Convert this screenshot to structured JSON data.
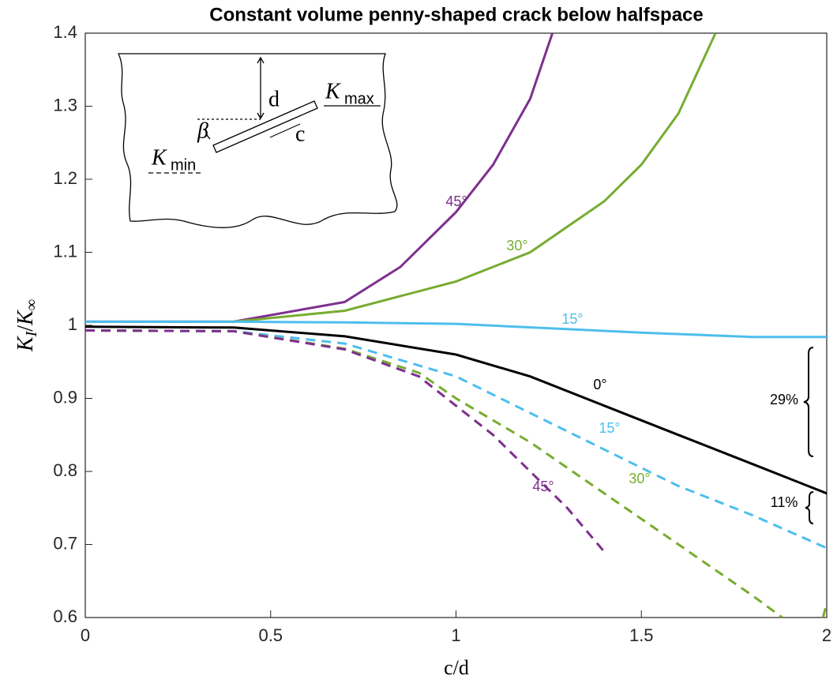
{
  "chart_data": {
    "type": "line",
    "title": "Constant volume penny-shaped crack below halfspace",
    "x_label": "c/d",
    "y_label": [
      {
        "text": "K"
      },
      {
        "text": "I",
        "sub": true
      },
      {
        "text": "/"
      },
      {
        "text": "K"
      },
      {
        "text": "∞",
        "sub": true
      }
    ],
    "xlim": [
      0,
      2
    ],
    "xticks": [
      0,
      0.5,
      1,
      1.5,
      2
    ],
    "ylim": [
      0.6,
      1.4
    ],
    "yticks": [
      0.6,
      0.7,
      0.8,
      0.9,
      1,
      1.1,
      1.2,
      1.3,
      1.4
    ],
    "grid": false,
    "series": [
      {
        "color": "#7E2F8E",
        "style": "solid",
        "x": [
          0,
          0.4,
          0.7,
          0.85,
          1.0,
          1.1,
          1.2,
          1.26
        ],
        "values": [
          1.005,
          1.005,
          1.032,
          1.08,
          1.155,
          1.22,
          1.31,
          1.4
        ]
      },
      {
        "color": "#77AC30",
        "style": "solid",
        "x": [
          0,
          0.4,
          0.7,
          1.0,
          1.2,
          1.4,
          1.5,
          1.6,
          1.7
        ],
        "values": [
          1.005,
          1.005,
          1.02,
          1.06,
          1.1,
          1.17,
          1.22,
          1.29,
          1.4
        ]
      },
      {
        "color": "#4DBEEE",
        "style": "solid",
        "x": [
          0,
          0.4,
          0.7,
          1.0,
          1.5,
          1.8,
          2.0
        ],
        "values": [
          1.005,
          1.005,
          1.004,
          1.002,
          0.99,
          0.984,
          0.984
        ]
      },
      {
        "color": "#000000",
        "style": "solid",
        "x": [
          0,
          0.4,
          0.7,
          1.0,
          1.2,
          1.4,
          1.6,
          1.8,
          2.0
        ],
        "values": [
          0.998,
          0.997,
          0.985,
          0.96,
          0.93,
          0.89,
          0.85,
          0.81,
          0.77
        ]
      },
      {
        "color": "#4DBEEE",
        "style": "dashed",
        "x": [
          0,
          0.4,
          0.7,
          1.0,
          1.2,
          1.4,
          1.6,
          1.8,
          2.0
        ],
        "values": [
          0.993,
          0.992,
          0.975,
          0.93,
          0.88,
          0.83,
          0.78,
          0.74,
          0.695
        ]
      },
      {
        "color": "#77AC30",
        "style": "dashed",
        "x": [
          0,
          0.4,
          0.7,
          0.9,
          1.0,
          1.2,
          1.4,
          1.6,
          1.8,
          1.88,
          1.9,
          1.99,
          2.0
        ],
        "values": [
          0.993,
          0.992,
          0.968,
          0.935,
          0.9,
          0.84,
          0.77,
          0.7,
          0.63,
          0.6,
          null,
          0.6,
          0.62
        ]
      },
      {
        "color": "#7E2F8E",
        "style": "dashed",
        "x": [
          0,
          0.4,
          0.7,
          0.9,
          1.0,
          1.1,
          1.2,
          1.3,
          1.35,
          1.4
        ],
        "values": [
          0.993,
          0.992,
          0.967,
          0.93,
          0.89,
          0.85,
          0.8,
          0.75,
          0.72,
          0.69
        ]
      }
    ],
    "annotations": [
      {
        "text": "45°",
        "color": "#7E2F8E"
      },
      {
        "text": "30°",
        "color": "#77AC30"
      },
      {
        "text": "15°",
        "color": "#4DBEEE"
      },
      {
        "text": "0°",
        "color": "#000000"
      },
      {
        "text": "15°",
        "color": "#4DBEEE"
      },
      {
        "text": "30°",
        "color": "#77AC30"
      },
      {
        "text": "45°",
        "color": "#7E2F8E"
      },
      {
        "text": "29%",
        "color": "#000000"
      },
      {
        "text": "11%",
        "color": "#000000"
      }
    ],
    "inset": {
      "d": "d",
      "c": "c",
      "beta": "β",
      "kmax": "K",
      "kmax_sub": "max",
      "kmin": "K",
      "kmin_sub": "min"
    }
  }
}
